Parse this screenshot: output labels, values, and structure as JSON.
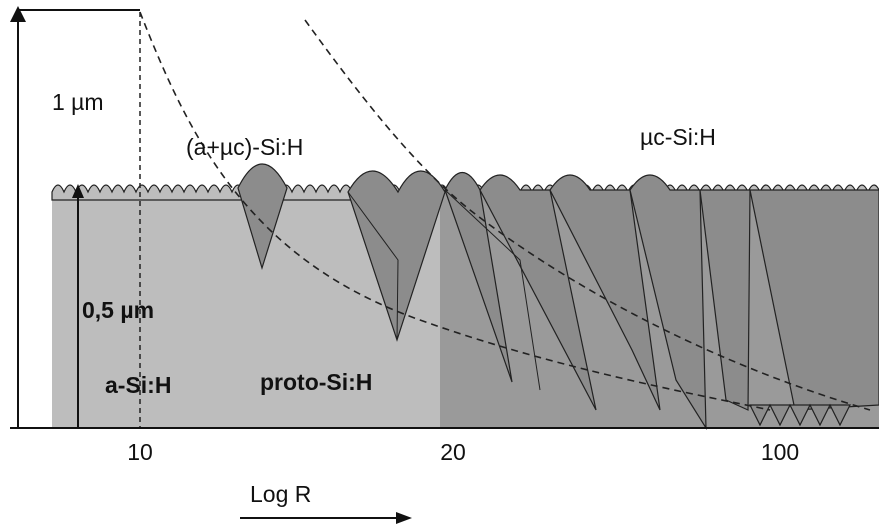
{
  "axis": {
    "height_label": "1 µm",
    "inner_label": "0,5 µm",
    "x_label": "Log R",
    "ticks": [
      "10",
      "20",
      "100"
    ]
  },
  "phases": {
    "amorphous": "a-Si:H",
    "proto": "proto-Si:H",
    "mixed": "(a+µc)-Si:H",
    "micro": "µc-Si:H"
  }
}
